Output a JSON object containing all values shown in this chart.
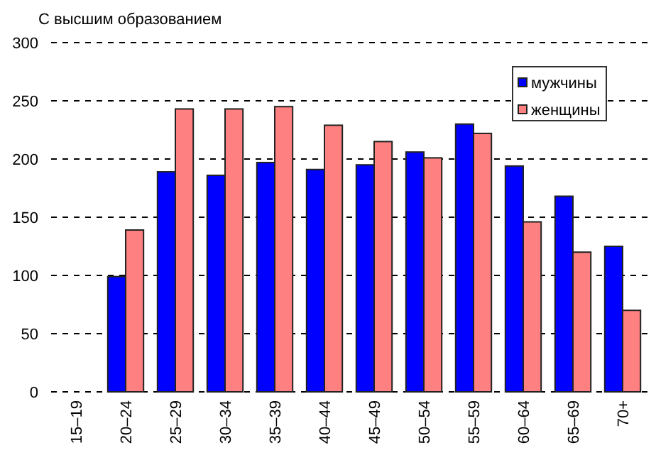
{
  "chart_data": {
    "type": "bar",
    "title": "С высшим образованием",
    "categories": [
      "15–19",
      "20–24",
      "25–29",
      "30–34",
      "35–39",
      "40–44",
      "45–49",
      "50–54",
      "55–59",
      "60–64",
      "65–69",
      "70+"
    ],
    "series": [
      {
        "name": "мужчины",
        "color": "#0000ff",
        "values": [
          null,
          99,
          189,
          186,
          197,
          191,
          195,
          206,
          230,
          194,
          168,
          125
        ]
      },
      {
        "name": "женщины",
        "color": "#ff8080",
        "values": [
          null,
          139,
          243,
          243,
          245,
          229,
          215,
          201,
          222,
          146,
          120,
          70
        ]
      }
    ],
    "ylim": [
      0,
      300
    ],
    "yticks": [
      0,
      50,
      100,
      150,
      200,
      250,
      300
    ],
    "grid": "y",
    "legend": "top right"
  }
}
